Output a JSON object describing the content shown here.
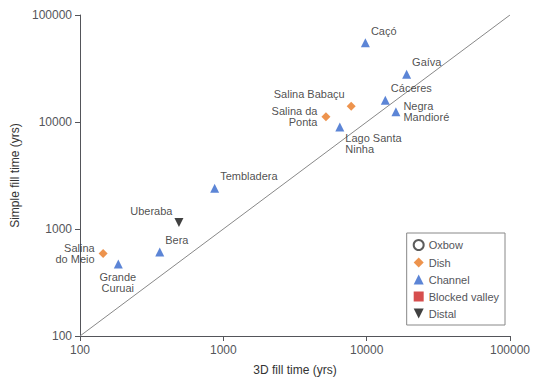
{
  "chart_data": {
    "type": "scatter",
    "xlabel": "3D fill time (yrs)",
    "ylabel": "Simple fill time (yrs)",
    "log": true,
    "xlim": [
      100,
      100000
    ],
    "ylim": [
      100,
      100000
    ],
    "xticks": [
      100,
      1000,
      10000,
      100000
    ],
    "yticks": [
      100,
      1000,
      10000,
      100000
    ],
    "grid": false,
    "legend": "lower right",
    "series": [
      {
        "type": "line",
        "color": "#888888",
        "line_style": "solid",
        "x": [
          100,
          100000
        ],
        "values": [
          100,
          100000
        ]
      },
      {
        "name": "Oxbow",
        "type": "scatter",
        "color": "#333333",
        "marker": "circle-open",
        "x": [],
        "values": [],
        "labels": []
      },
      {
        "name": "Dish",
        "type": "scatter",
        "color": "#E87820",
        "marker": "diamond",
        "x": [
          145,
          5200,
          7800
        ],
        "values": [
          590,
          11200,
          14000
        ],
        "labels": [
          "Salina\ndo Meio",
          "Salina da\nPonta",
          "Salina Babaçu"
        ]
      },
      {
        "name": "Channel",
        "type": "scatter",
        "color": "#3366CC",
        "marker": "triangle",
        "x": [
          185,
          360,
          870,
          6500,
          9800,
          13500,
          16000,
          19000
        ],
        "values": [
          470,
          610,
          2400,
          9000,
          55000,
          16000,
          12500,
          28000
        ],
        "labels": [
          "Grande\nCuruai",
          "Bera",
          "Tembladera",
          "Lago Santa\nNinha",
          "Caçó",
          "Cáceres",
          "Negra\nMandioré",
          "Gaíva"
        ]
      },
      {
        "name": "Blocked valley",
        "type": "scatter",
        "color": "#CC2222",
        "marker": "square",
        "x": [],
        "values": [],
        "labels": []
      },
      {
        "name": "Distal",
        "type": "scatter",
        "color": "#111111",
        "marker": "triangle-down",
        "x": [
          490
        ],
        "values": [
          1150
        ],
        "labels": [
          "Uberaba"
        ]
      }
    ]
  }
}
